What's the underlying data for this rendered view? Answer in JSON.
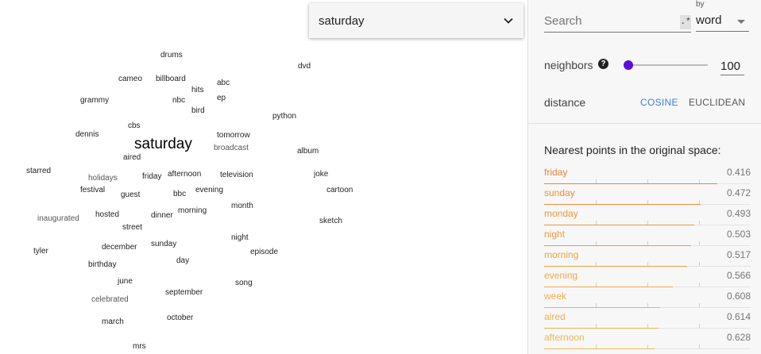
{
  "selector": {
    "value": "saturday"
  },
  "search": {
    "placeholder": "Search",
    "regex_label": ".*"
  },
  "by": {
    "label": "by",
    "value": "word"
  },
  "neighbors": {
    "label": "neighbors",
    "help": "?",
    "value": "100",
    "slider_fraction": 0.02
  },
  "distance": {
    "label": "distance",
    "cosine": "COSINE",
    "euclidean": "EUCLIDEAN",
    "selected": "COSINE"
  },
  "nearest": {
    "title": "Nearest points in the original space:",
    "items": [
      {
        "word": "friday",
        "value": "0.416",
        "color": "#e8843a"
      },
      {
        "word": "sunday",
        "value": "0.472",
        "color": "#ea8f3e"
      },
      {
        "word": "monday",
        "value": "0.493",
        "color": "#eb9641"
      },
      {
        "word": "night",
        "value": "0.503",
        "color": "#ec9a43"
      },
      {
        "word": "morning",
        "value": "0.517",
        "color": "#eda046"
      },
      {
        "word": "evening",
        "value": "0.566",
        "color": "#eea94a"
      },
      {
        "word": "week",
        "value": "0.608",
        "color": "#efb04e"
      },
      {
        "word": "aired",
        "value": "0.614",
        "color": "#f0b350"
      },
      {
        "word": "afternoon",
        "value": "0.628",
        "color": "#f0b652"
      }
    ]
  },
  "projection": {
    "words": [
      {
        "text": "drums",
        "hl": false
      },
      {
        "text": "dvd",
        "hl": false
      },
      {
        "text": "cameo",
        "hl": false
      },
      {
        "text": "billboard",
        "hl": false
      },
      {
        "text": "abc",
        "hl": false
      },
      {
        "text": "hits",
        "hl": false
      },
      {
        "text": "grammy",
        "hl": false
      },
      {
        "text": "nbc",
        "hl": false
      },
      {
        "text": "ep",
        "hl": false
      },
      {
        "text": "bird",
        "hl": false
      },
      {
        "text": "python",
        "hl": false
      },
      {
        "text": "cbs",
        "hl": false
      },
      {
        "text": "dennis",
        "hl": false
      },
      {
        "text": "tomorrow",
        "hl": false
      },
      {
        "text": "saturday",
        "hl": true
      },
      {
        "text": "broadcast",
        "hl": false
      },
      {
        "text": "album",
        "hl": false
      },
      {
        "text": "aired",
        "hl": false
      },
      {
        "text": "starred",
        "hl": false
      },
      {
        "text": "holidays",
        "hl": false
      },
      {
        "text": "friday",
        "hl": false
      },
      {
        "text": "afternoon",
        "hl": false
      },
      {
        "text": "television",
        "hl": false
      },
      {
        "text": "joke",
        "hl": false
      },
      {
        "text": "festival",
        "hl": false
      },
      {
        "text": "guest",
        "hl": false
      },
      {
        "text": "bbc",
        "hl": false
      },
      {
        "text": "evening",
        "hl": false
      },
      {
        "text": "cartoon",
        "hl": false
      },
      {
        "text": "month",
        "hl": false
      },
      {
        "text": "inaugurated",
        "hl": false
      },
      {
        "text": "hosted",
        "hl": false
      },
      {
        "text": "dinner",
        "hl": false
      },
      {
        "text": "morning",
        "hl": false
      },
      {
        "text": "sketch",
        "hl": false
      },
      {
        "text": "street",
        "hl": false
      },
      {
        "text": "night",
        "hl": false
      },
      {
        "text": "tyler",
        "hl": false
      },
      {
        "text": "december",
        "hl": false
      },
      {
        "text": "sunday",
        "hl": false
      },
      {
        "text": "episode",
        "hl": false
      },
      {
        "text": "birthday",
        "hl": false
      },
      {
        "text": "day",
        "hl": false
      },
      {
        "text": "june",
        "hl": false
      },
      {
        "text": "song",
        "hl": false
      },
      {
        "text": "september",
        "hl": false
      },
      {
        "text": "celebrated",
        "hl": false
      },
      {
        "text": "october",
        "hl": false
      },
      {
        "text": "march",
        "hl": false
      },
      {
        "text": "mrs",
        "hl": false
      }
    ]
  }
}
